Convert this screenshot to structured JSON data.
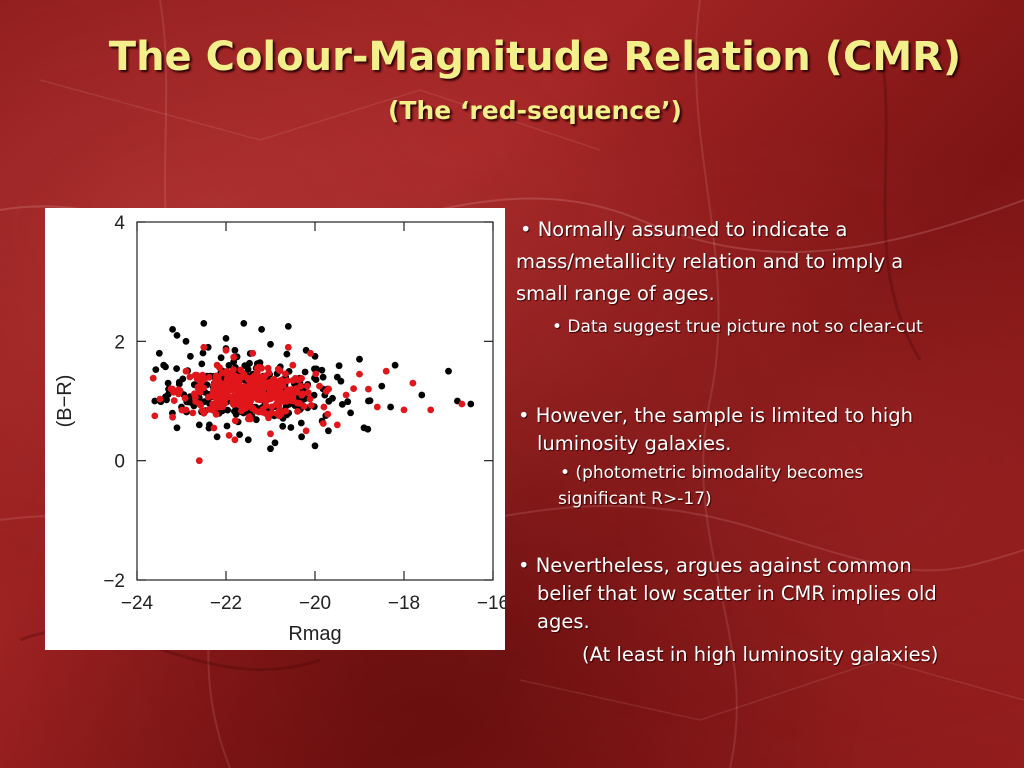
{
  "slide": {
    "title": "The Colour-Magnitude Relation (CMR)",
    "subtitle": "(The ‘red-sequence’)"
  },
  "bullets": [
    {
      "line1": "• Normally assumed to indicate a",
      "line2": "mass/metallicity relation and to imply a",
      "line3": "small range of ages."
    },
    {
      "text": "• Data suggest true picture not so clear-cut"
    },
    {
      "line1": "• However, the sample is limited to high",
      "line2": "luminosity galaxies."
    },
    {
      "line1": "•  (photometric bimodality becomes",
      "line2": "significant R>-17)"
    },
    {
      "line1": "• Nevertheless, argues against common",
      "line2": "belief that low scatter in CMR implies old",
      "line3": "ages."
    },
    {
      "text": "(At least in high luminosity galaxies)"
    }
  ],
  "colors": {
    "title": "#f3ef8a",
    "series_black": "#000000",
    "series_red": "#e0161a"
  },
  "chart_data": {
    "type": "scatter",
    "xlabel": "Rmag",
    "ylabel": "(B−R)",
    "xlim": [
      -24,
      -16
    ],
    "ylim": [
      -2,
      4
    ],
    "xticks": [
      -24,
      -22,
      -20,
      -18,
      -16
    ],
    "xtick_labels": [
      "−24",
      "−22",
      "−20",
      "−18",
      "−16"
    ],
    "yticks": [
      -2,
      0,
      2,
      4
    ],
    "ytick_labels": [
      "−2",
      "0",
      "2",
      "4"
    ],
    "grid": false,
    "series": [
      {
        "color": "#000000",
        "points": [
          [
            -23.2,
            2.2
          ],
          [
            -23.1,
            2.1
          ],
          [
            -22.5,
            2.3
          ],
          [
            -22.9,
            2.0
          ],
          [
            -21.6,
            2.3
          ],
          [
            -21.2,
            2.2
          ],
          [
            -20.6,
            2.25
          ],
          [
            -22.0,
            2.05
          ],
          [
            -21.0,
            1.95
          ],
          [
            -20.2,
            1.85
          ],
          [
            -23.4,
            1.6
          ],
          [
            -23.3,
            1.3
          ],
          [
            -23.6,
            1.0
          ],
          [
            -23.0,
            0.9
          ],
          [
            -22.6,
            0.6
          ],
          [
            -22.2,
            0.4
          ],
          [
            -21.5,
            0.35
          ],
          [
            -20.9,
            0.3
          ],
          [
            -20.3,
            0.4
          ],
          [
            -19.7,
            0.5
          ],
          [
            -19.2,
            0.8
          ],
          [
            -18.8,
            1.0
          ],
          [
            -18.5,
            1.25
          ],
          [
            -18.3,
            0.9
          ],
          [
            -17.6,
            1.1
          ],
          [
            -17.0,
            1.5
          ],
          [
            -16.8,
            1.0
          ],
          [
            -16.5,
            0.95
          ],
          [
            -18.2,
            1.6
          ],
          [
            -19.0,
            1.7
          ],
          [
            -19.5,
            1.4
          ],
          [
            -20.0,
            1.75
          ],
          [
            -21.8,
            1.85
          ],
          [
            -22.8,
            1.75
          ],
          [
            -23.1,
            0.55
          ],
          [
            -21.0,
            0.2
          ],
          [
            -20.0,
            0.25
          ],
          [
            -18.9,
            0.55
          ],
          [
            -22.4,
            1.9
          ],
          [
            -23.5,
            1.8
          ]
        ]
      },
      {
        "color": "#e0161a",
        "points": [
          [
            -22.5,
            1.9
          ],
          [
            -22.0,
            1.85
          ],
          [
            -21.4,
            1.8
          ],
          [
            -20.6,
            1.9
          ],
          [
            -20.1,
            1.8
          ],
          [
            -23.6,
            0.75
          ],
          [
            -22.6,
            0.0
          ],
          [
            -21.8,
            0.35
          ],
          [
            -21.0,
            0.45
          ],
          [
            -20.2,
            0.5
          ],
          [
            -19.5,
            0.6
          ],
          [
            -18.6,
            0.9
          ],
          [
            -18.0,
            0.85
          ],
          [
            -17.4,
            0.85
          ],
          [
            -16.7,
            0.95
          ],
          [
            -17.8,
            1.3
          ],
          [
            -18.4,
            1.5
          ],
          [
            -19.0,
            1.45
          ],
          [
            -20.5,
            1.6
          ],
          [
            -22.9,
            1.5
          ],
          [
            -23.2,
            1.2
          ],
          [
            -22.9,
            0.85
          ],
          [
            -21.5,
            0.7
          ],
          [
            -20.8,
            0.75
          ],
          [
            -19.8,
            0.9
          ],
          [
            -19.3,
            1.1
          ],
          [
            -18.8,
            1.2
          ],
          [
            -22.2,
            1.6
          ],
          [
            -21.2,
            1.55
          ],
          [
            -20.9,
            1.3
          ],
          [
            -22.6,
            1.25
          ],
          [
            -22.3,
            0.95
          ],
          [
            -21.6,
            1.05
          ],
          [
            -21.1,
            1.0
          ],
          [
            -20.4,
            1.15
          ],
          [
            -19.9,
            1.25
          ],
          [
            -22.0,
            1.3
          ],
          [
            -21.7,
            1.4
          ],
          [
            -21.3,
            1.2
          ],
          [
            -20.7,
            1.05
          ]
        ]
      }
    ]
  }
}
